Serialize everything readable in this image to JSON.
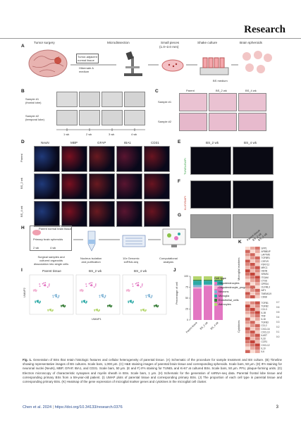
{
  "header": {
    "title": "Research"
  },
  "panels": {
    "A": {
      "letter": "A",
      "steps": [
        "Tumor surgery",
        "Microdissection",
        "Small pieces",
        "(1.0~2.0 mm)",
        "Shake culture",
        "Brain spheroids"
      ],
      "tissue_label_1": "Tumor-adjacent",
      "tissue_label_2": "normal tissue",
      "medium_1": "Hibernate A",
      "medium_2": "medium",
      "bs_medium": "BS medium"
    },
    "B": {
      "letter": "B",
      "rows": [
        "Sample #1",
        "(frontal lobe)",
        "Sample #2",
        "(temporal lobe)"
      ],
      "times": [
        "1 wk",
        "2 wk",
        "3 wk",
        "4 wk"
      ]
    },
    "C": {
      "letter": "C",
      "cols": [
        "Parent",
        "BS_2 wk",
        "BS_4 wk"
      ],
      "rows": [
        "Sample #1",
        "Sample #2"
      ]
    },
    "D": {
      "letter": "D",
      "cols": [
        "NeuN",
        "MBP",
        "GFAP",
        "IBA1",
        "CD31"
      ],
      "rows": [
        "Parent",
        "BS_2 wk",
        "BS_4 wk"
      ]
    },
    "E": {
      "letter": "E",
      "cols": [
        "BS_2 wk",
        "BS_4 wk"
      ],
      "side": "TUNEL/DAPI"
    },
    "F": {
      "letter": "F",
      "side": "Ki-67/DAPI"
    },
    "G": {
      "letter": "G"
    },
    "H": {
      "letter": "H",
      "top_1": "Parent normal brain tissue",
      "top_2": "Primary brain spheroids",
      "weeks": [
        "2 wk",
        "4 wk"
      ],
      "steps": [
        "Surgical samples and",
        "cultured organoids",
        "dissociation into single cells",
        "Nucleus isolation",
        "and purification",
        "10x Genomic",
        "snRNA-seq",
        "Computational",
        "analysis"
      ]
    },
    "I": {
      "letter": "I",
      "titles": [
        "Parent tissue",
        "BS_2 wk",
        "BS_4 wk"
      ],
      "ylabel": "UMAP2",
      "xlabel": "UMAP1",
      "clusters": [
        "Oligodendrocytes",
        "Astrocytes",
        "Microglia",
        "Endothelial_cells",
        "Neurons",
        "Oligodendrocyte_progenitor_cell"
      ]
    },
    "J": {
      "letter": "J",
      "ylabel": "Percentage of cell",
      "legend_title": "Cell type",
      "legend": [
        "Astrocytes",
        "Endothelial_cells",
        "Microglia",
        "Neurons",
        "Oligodendrocytes",
        "Oligodendrocyte_progenitor_cell"
      ],
      "xticks": [
        "Parent tissue",
        "BS_2 wk",
        "BS_4 wk"
      ],
      "yticks": [
        "0",
        "25",
        "50",
        "75",
        "100"
      ]
    },
    "K": {
      "letter": "K",
      "col_heads": [
        "Parent tissue",
        "BS_2 wk",
        "BS_4 wk"
      ],
      "group_1": "Microglial markers",
      "group_2": "Cytokines",
      "genes_1": [
        "SPP1",
        "APBB1IP",
        "LAPTM5",
        "TGFBR1",
        "CSF1R",
        "P2RY12",
        "MRC1",
        "HEXB",
        "SPARC",
        "ITGAM",
        "CTSS",
        "GPR34",
        "OLFML3",
        "AIF1",
        "TMEM119",
        "CD68"
      ],
      "genes_2": [
        "TGFB1",
        "TGFB2",
        "CCL3",
        "IL1B",
        "TNF",
        "IL18",
        "TGFB3",
        "CCL2",
        "CXCL16",
        "CXCL10",
        "IL6ST",
        "IL33",
        "CCR1",
        "CXCL12",
        "IL10",
        "IL6"
      ],
      "scale": [
        "0.7",
        "0.6",
        "0.5",
        "0.4",
        "0.3",
        "0.2",
        "0.1",
        "0.0"
      ]
    }
  },
  "chart_data": {
    "type": "bar",
    "categories": [
      "Parent tissue",
      "BS_2 wk",
      "BS_4 wk"
    ],
    "series": [
      {
        "name": "Oligodendrocytes",
        "values": [
          72,
          78,
          76
        ]
      },
      {
        "name": "Oligodendrocyte_progenitor_cell",
        "values": [
          3,
          2,
          3
        ]
      },
      {
        "name": "Neurons",
        "values": [
          5,
          1,
          1
        ]
      },
      {
        "name": "Microglia",
        "values": [
          10,
          9,
          10
        ]
      },
      {
        "name": "Endothelial_cells",
        "values": [
          2,
          2,
          2
        ]
      },
      {
        "name": "Astrocytes",
        "values": [
          8,
          8,
          8
        ]
      }
    ],
    "ylabel": "Percentage of cell",
    "ylim": [
      0,
      100
    ],
    "colors": [
      "#e377c2",
      "#f2b5d4",
      "#7fb3d5",
      "#2ca9a6",
      "#3a7f3a",
      "#b5d66e"
    ]
  },
  "caption": {
    "lead": "Fig. 1.",
    "text": "Generation of BSs that retain histologic features and cellular heterogeneity of parental tissue. (A) Schematic of the procedure for sample treatment and BS culture. (B) Timeline showing representative images of BS cultures. Scale bars, 1,000 μm. (C) H&E staining images of parental brain tissue and corresponding spheroids. Scale bars, 50 μm. (D) IFA staining for neuronal nuclei (NeuN), MBP, GFAP, IBA1, and CD31. Scale bars, 50 μm. (E and F) IFA staining for TUNEL and Ki-67 at cultured BSs. Scale bars, 50 μm. PFU, plaque-forming units. (G) Electron microscopy of characteristic synapses and myelin sheath in BSs. Scale bars, 1 μm. (H) Schematic for the generation of snRNA-seq data. Parental frontal lobe tissue and corresponding primary BSs from a 59-year-old patient. (I) UMAP plots of parental tissue and corresponding primary BSs. (J) The proportion of each cell type in parental tissue and corresponding primary BSs. (K) Heatmap of the gene expression of microglial marker genes and cytokines in the microglial cell cluster."
  },
  "footer": {
    "citation": "Chen et al. 2024",
    "separator": "|",
    "doi": "https://doi.org/10.34133/research.0376",
    "page": "3"
  }
}
